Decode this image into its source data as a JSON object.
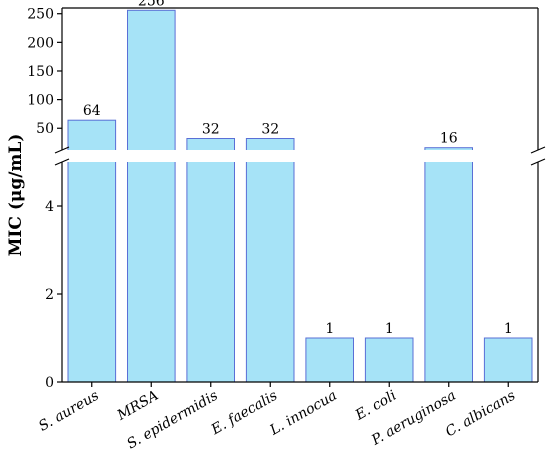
{
  "chart_data": {
    "type": "bar",
    "ylabel": "MIC (μg/mL)",
    "categories": [
      "S. aureus",
      "MRSA",
      "S. epidermidis",
      "E. faecalis",
      "L. innocua",
      "E. coli",
      "P. aeruginosa",
      "C. albicans"
    ],
    "category_italic": [
      true,
      false,
      true,
      true,
      true,
      true,
      true,
      true
    ],
    "values": [
      64,
      256,
      32,
      32,
      1,
      1,
      16,
      1
    ],
    "data_labels": [
      "64",
      "256",
      "32",
      "32",
      "1",
      "1",
      "16",
      "1"
    ],
    "y_axis_break": true,
    "lower_segment": {
      "ylim": [
        0,
        5
      ],
      "ticks": [
        0,
        2,
        4
      ]
    },
    "upper_segment": {
      "ylim": [
        12,
        260
      ],
      "ticks": [
        50,
        100,
        150,
        200,
        250
      ]
    },
    "grid": false,
    "colors": {
      "bar_fill": "#a6e3f7",
      "bar_stroke": "#5a6fd6",
      "axis": "#000000"
    }
  }
}
